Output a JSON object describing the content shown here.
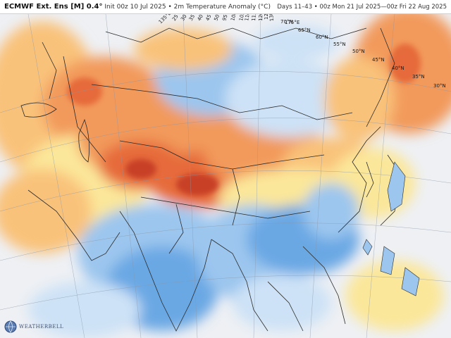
{
  "header": {
    "model": "ECMWF Ext. Ens [M] 0.4°",
    "init": "Init 00z 10 Jul 2025 • 2m Temperature Anomaly (°C)",
    "valid": "Days 11–43 • 00z Mon 21 Jul 2025—00z Fri 22 Aug 2025"
  },
  "map": {
    "latitude_labels": [
      "70°N",
      "65°N",
      "60°N",
      "55°N",
      "50°N",
      "45°N",
      "40°N",
      "35°N",
      "30°N"
    ],
    "longitude_labels": [
      "25°E",
      "30°E",
      "35°E",
      "40°E",
      "45°E",
      "50°E",
      "95°E",
      "100°E",
      "105°E",
      "110°E",
      "115°E",
      "120°E",
      "125°E",
      "130°E",
      "135°E",
      "175°E"
    ],
    "colors": {
      "ocean": "#eef0f4",
      "neutral_land": "#f4f6f9",
      "warm_light": "#fbe79a",
      "warm": "#f9c27a",
      "warm_strong": "#f29a5c",
      "hot": "#e66a3a",
      "hottest": "#c84125",
      "cool_light": "#cde2f6",
      "cool": "#9cc6ee",
      "cool_strong": "#6aa8e4",
      "borders": "#2a2a2a"
    }
  },
  "logo": {
    "text": "WEATHERBELL"
  }
}
